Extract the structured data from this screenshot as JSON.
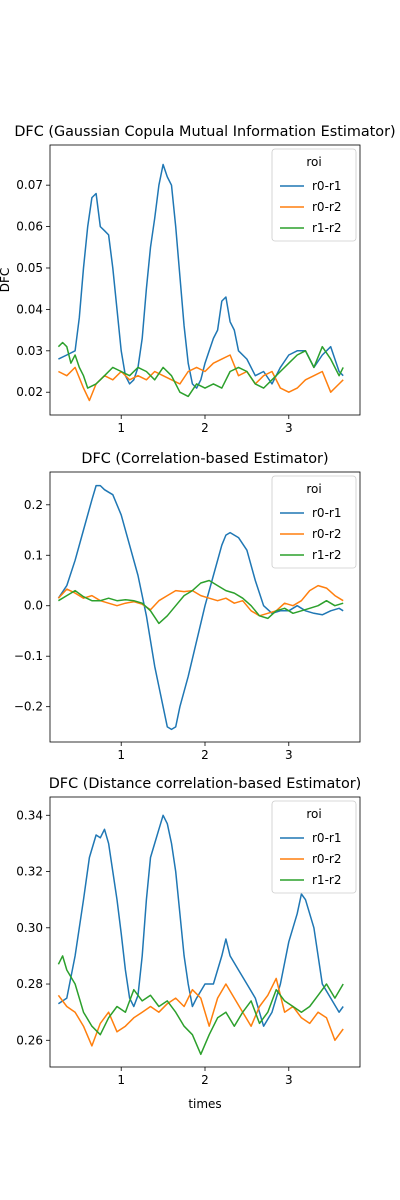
{
  "colors": {
    "r0-r1": "#1f77b4",
    "r0-r2": "#ff7f0e",
    "r1-r2": "#2ca02c",
    "axis": "#000000",
    "legend_border": "#cccccc"
  },
  "chart_data": [
    {
      "type": "line",
      "title": "DFC (Gaussian Copula Mutual Information Estimator)",
      "xlabel": "",
      "ylabel": "DFC",
      "xlim": [
        0.15,
        3.85
      ],
      "ylim": [
        0.0145,
        0.0797
      ],
      "xticks": [
        1,
        2,
        3
      ],
      "xtick_labels": [
        "1",
        "2",
        "3"
      ],
      "yticks": [
        0.02,
        0.03,
        0.04,
        0.05,
        0.06,
        0.07
      ],
      "ytick_labels": [
        "0.02",
        "0.03",
        "0.04",
        "0.05",
        "0.06",
        "0.07"
      ],
      "legend": {
        "title": "roi",
        "position": "top-right"
      },
      "series": [
        {
          "name": "r0-r1",
          "x": [
            0.25,
            0.35,
            0.45,
            0.5,
            0.55,
            0.6,
            0.65,
            0.7,
            0.75,
            0.8,
            0.85,
            0.9,
            0.95,
            1.0,
            1.05,
            1.1,
            1.15,
            1.2,
            1.25,
            1.3,
            1.35,
            1.4,
            1.45,
            1.5,
            1.55,
            1.6,
            1.65,
            1.7,
            1.75,
            1.8,
            1.85,
            1.9,
            1.95,
            2.0,
            2.05,
            2.1,
            2.15,
            2.2,
            2.25,
            2.3,
            2.35,
            2.4,
            2.5,
            2.6,
            2.7,
            2.8,
            2.9,
            3.0,
            3.1,
            3.2,
            3.3,
            3.4,
            3.5,
            3.6,
            3.65
          ],
          "y": [
            0.028,
            0.029,
            0.03,
            0.038,
            0.05,
            0.06,
            0.067,
            0.068,
            0.06,
            0.059,
            0.058,
            0.05,
            0.04,
            0.03,
            0.024,
            0.022,
            0.023,
            0.026,
            0.033,
            0.045,
            0.055,
            0.062,
            0.07,
            0.075,
            0.072,
            0.07,
            0.06,
            0.048,
            0.036,
            0.027,
            0.022,
            0.021,
            0.023,
            0.027,
            0.03,
            0.033,
            0.035,
            0.042,
            0.043,
            0.037,
            0.035,
            0.03,
            0.028,
            0.024,
            0.025,
            0.022,
            0.026,
            0.029,
            0.03,
            0.03,
            0.026,
            0.029,
            0.031,
            0.025,
            0.024
          ]
        },
        {
          "name": "r0-r2",
          "x": [
            0.25,
            0.35,
            0.45,
            0.55,
            0.62,
            0.7,
            0.8,
            0.9,
            1.0,
            1.1,
            1.2,
            1.3,
            1.4,
            1.5,
            1.6,
            1.7,
            1.8,
            1.9,
            2.0,
            2.1,
            2.2,
            2.3,
            2.4,
            2.5,
            2.6,
            2.7,
            2.8,
            2.9,
            3.0,
            3.1,
            3.2,
            3.3,
            3.4,
            3.5,
            3.6,
            3.65
          ],
          "y": [
            0.025,
            0.024,
            0.026,
            0.021,
            0.018,
            0.022,
            0.024,
            0.023,
            0.025,
            0.023,
            0.024,
            0.023,
            0.025,
            0.024,
            0.023,
            0.022,
            0.025,
            0.026,
            0.025,
            0.027,
            0.028,
            0.029,
            0.024,
            0.025,
            0.022,
            0.024,
            0.025,
            0.021,
            0.02,
            0.021,
            0.023,
            0.024,
            0.025,
            0.02,
            0.022,
            0.023
          ]
        },
        {
          "name": "r1-r2",
          "x": [
            0.25,
            0.3,
            0.35,
            0.4,
            0.45,
            0.5,
            0.55,
            0.6,
            0.7,
            0.8,
            0.9,
            1.0,
            1.1,
            1.2,
            1.3,
            1.4,
            1.5,
            1.6,
            1.7,
            1.8,
            1.9,
            2.0,
            2.1,
            2.2,
            2.3,
            2.4,
            2.5,
            2.6,
            2.7,
            2.8,
            2.9,
            3.0,
            3.1,
            3.2,
            3.3,
            3.4,
            3.5,
            3.6,
            3.65
          ],
          "y": [
            0.031,
            0.032,
            0.031,
            0.027,
            0.029,
            0.026,
            0.024,
            0.021,
            0.022,
            0.024,
            0.026,
            0.025,
            0.024,
            0.026,
            0.025,
            0.023,
            0.026,
            0.024,
            0.02,
            0.019,
            0.022,
            0.021,
            0.022,
            0.021,
            0.025,
            0.026,
            0.025,
            0.022,
            0.021,
            0.023,
            0.025,
            0.027,
            0.029,
            0.03,
            0.026,
            0.031,
            0.028,
            0.024,
            0.026
          ]
        }
      ]
    },
    {
      "type": "line",
      "title": "DFC (Correlation-based Estimator)",
      "xlabel": "",
      "ylabel": "",
      "xlim": [
        0.15,
        3.85
      ],
      "ylim": [
        -0.27,
        0.265
      ],
      "xticks": [
        1,
        2,
        3
      ],
      "xtick_labels": [
        "1",
        "2",
        "3"
      ],
      "yticks": [
        -0.2,
        -0.1,
        0.0,
        0.1,
        0.2
      ],
      "ytick_labels": [
        "−0.2",
        "−0.1",
        "0.0",
        "0.1",
        "0.2"
      ],
      "legend": {
        "title": "roi",
        "position": "top-right"
      },
      "series": [
        {
          "name": "r0-r1",
          "x": [
            0.25,
            0.35,
            0.45,
            0.55,
            0.65,
            0.7,
            0.75,
            0.8,
            0.85,
            0.9,
            1.0,
            1.1,
            1.2,
            1.3,
            1.4,
            1.45,
            1.5,
            1.55,
            1.6,
            1.65,
            1.7,
            1.8,
            1.9,
            2.0,
            2.1,
            2.2,
            2.25,
            2.3,
            2.4,
            2.5,
            2.6,
            2.7,
            2.8,
            2.9,
            3.0,
            3.1,
            3.2,
            3.3,
            3.4,
            3.5,
            3.6,
            3.65
          ],
          "y": [
            0.015,
            0.04,
            0.09,
            0.15,
            0.21,
            0.238,
            0.238,
            0.23,
            0.225,
            0.22,
            0.18,
            0.12,
            0.06,
            -0.02,
            -0.12,
            -0.16,
            -0.2,
            -0.24,
            -0.245,
            -0.24,
            -0.2,
            -0.14,
            -0.07,
            0.0,
            0.06,
            0.12,
            0.14,
            0.145,
            0.135,
            0.11,
            0.05,
            0.0,
            -0.015,
            -0.01,
            -0.01,
            0.0,
            -0.01,
            -0.015,
            -0.018,
            -0.01,
            -0.005,
            -0.01
          ]
        },
        {
          "name": "r0-r2",
          "x": [
            0.25,
            0.35,
            0.45,
            0.55,
            0.65,
            0.75,
            0.85,
            0.95,
            1.05,
            1.15,
            1.25,
            1.35,
            1.45,
            1.55,
            1.65,
            1.75,
            1.85,
            1.95,
            2.05,
            2.15,
            2.25,
            2.35,
            2.45,
            2.55,
            2.65,
            2.75,
            2.85,
            2.95,
            3.05,
            3.15,
            3.25,
            3.35,
            3.45,
            3.55,
            3.65
          ],
          "y": [
            0.015,
            0.033,
            0.025,
            0.015,
            0.02,
            0.01,
            0.005,
            0.0,
            0.005,
            0.008,
            0.003,
            -0.008,
            0.01,
            0.02,
            0.03,
            0.028,
            0.03,
            0.02,
            0.015,
            0.01,
            0.015,
            0.005,
            0.01,
            -0.01,
            -0.02,
            -0.015,
            -0.01,
            0.005,
            0.0,
            0.01,
            0.03,
            0.04,
            0.035,
            0.02,
            0.01
          ]
        },
        {
          "name": "r1-r2",
          "x": [
            0.25,
            0.35,
            0.45,
            0.55,
            0.65,
            0.75,
            0.85,
            0.95,
            1.05,
            1.15,
            1.25,
            1.35,
            1.45,
            1.55,
            1.65,
            1.75,
            1.85,
            1.95,
            2.05,
            2.15,
            2.25,
            2.35,
            2.45,
            2.55,
            2.65,
            2.75,
            2.85,
            2.95,
            3.05,
            3.15,
            3.25,
            3.35,
            3.45,
            3.55,
            3.65
          ],
          "y": [
            0.01,
            0.02,
            0.03,
            0.018,
            0.01,
            0.01,
            0.015,
            0.01,
            0.012,
            0.01,
            0.005,
            -0.01,
            -0.035,
            -0.02,
            0.0,
            0.02,
            0.03,
            0.045,
            0.05,
            0.04,
            0.03,
            0.025,
            0.015,
            0.0,
            -0.02,
            -0.025,
            -0.01,
            -0.005,
            -0.015,
            -0.01,
            -0.005,
            0.0,
            0.01,
            0.0,
            0.005
          ]
        }
      ]
    },
    {
      "type": "line",
      "title": "DFC (Distance correlation-based Estimator)",
      "xlabel": "times",
      "ylabel": "",
      "xlim": [
        0.15,
        3.85
      ],
      "ylim": [
        0.2505,
        0.3465
      ],
      "xticks": [
        1,
        2,
        3
      ],
      "xtick_labels": [
        "1",
        "2",
        "3"
      ],
      "yticks": [
        0.26,
        0.28,
        0.3,
        0.32,
        0.34
      ],
      "ytick_labels": [
        "0.26",
        "0.28",
        "0.30",
        "0.32",
        "0.34"
      ],
      "legend": {
        "title": "roi",
        "position": "top-right"
      },
      "series": [
        {
          "name": "r0-r1",
          "x": [
            0.25,
            0.35,
            0.45,
            0.55,
            0.62,
            0.7,
            0.75,
            0.8,
            0.85,
            0.9,
            0.95,
            1.0,
            1.05,
            1.1,
            1.15,
            1.2,
            1.25,
            1.3,
            1.35,
            1.4,
            1.45,
            1.5,
            1.55,
            1.6,
            1.65,
            1.7,
            1.75,
            1.8,
            1.85,
            1.9,
            2.0,
            2.1,
            2.2,
            2.25,
            2.3,
            2.4,
            2.5,
            2.6,
            2.7,
            2.8,
            2.9,
            3.0,
            3.1,
            3.15,
            3.2,
            3.3,
            3.4,
            3.5,
            3.6,
            3.65
          ],
          "y": [
            0.273,
            0.275,
            0.29,
            0.31,
            0.325,
            0.333,
            0.332,
            0.335,
            0.33,
            0.32,
            0.31,
            0.298,
            0.285,
            0.275,
            0.272,
            0.276,
            0.29,
            0.31,
            0.325,
            0.33,
            0.335,
            0.34,
            0.337,
            0.33,
            0.32,
            0.305,
            0.29,
            0.28,
            0.272,
            0.275,
            0.28,
            0.28,
            0.29,
            0.296,
            0.29,
            0.285,
            0.28,
            0.275,
            0.265,
            0.27,
            0.28,
            0.295,
            0.305,
            0.312,
            0.31,
            0.3,
            0.28,
            0.275,
            0.27,
            0.272
          ]
        },
        {
          "name": "r0-r2",
          "x": [
            0.25,
            0.35,
            0.45,
            0.55,
            0.65,
            0.75,
            0.85,
            0.95,
            1.05,
            1.15,
            1.25,
            1.35,
            1.45,
            1.55,
            1.65,
            1.75,
            1.85,
            1.95,
            2.05,
            2.15,
            2.25,
            2.35,
            2.45,
            2.55,
            2.65,
            2.75,
            2.85,
            2.95,
            3.05,
            3.15,
            3.25,
            3.35,
            3.45,
            3.55,
            3.65
          ],
          "y": [
            0.276,
            0.272,
            0.27,
            0.265,
            0.258,
            0.266,
            0.27,
            0.263,
            0.265,
            0.268,
            0.27,
            0.272,
            0.27,
            0.273,
            0.275,
            0.272,
            0.278,
            0.275,
            0.265,
            0.275,
            0.28,
            0.275,
            0.27,
            0.265,
            0.272,
            0.276,
            0.282,
            0.27,
            0.272,
            0.268,
            0.266,
            0.27,
            0.268,
            0.26,
            0.264
          ]
        },
        {
          "name": "r1-r2",
          "x": [
            0.25,
            0.3,
            0.35,
            0.45,
            0.55,
            0.65,
            0.75,
            0.85,
            0.95,
            1.05,
            1.15,
            1.25,
            1.35,
            1.45,
            1.55,
            1.65,
            1.75,
            1.85,
            1.95,
            2.05,
            2.15,
            2.25,
            2.35,
            2.45,
            2.55,
            2.65,
            2.75,
            2.85,
            2.95,
            3.05,
            3.15,
            3.25,
            3.35,
            3.45,
            3.55,
            3.65
          ],
          "y": [
            0.287,
            0.29,
            0.285,
            0.28,
            0.27,
            0.265,
            0.262,
            0.268,
            0.272,
            0.27,
            0.278,
            0.274,
            0.276,
            0.272,
            0.274,
            0.27,
            0.265,
            0.262,
            0.255,
            0.262,
            0.268,
            0.27,
            0.265,
            0.27,
            0.274,
            0.266,
            0.27,
            0.278,
            0.274,
            0.272,
            0.27,
            0.272,
            0.276,
            0.28,
            0.275,
            0.28
          ]
        }
      ]
    }
  ]
}
